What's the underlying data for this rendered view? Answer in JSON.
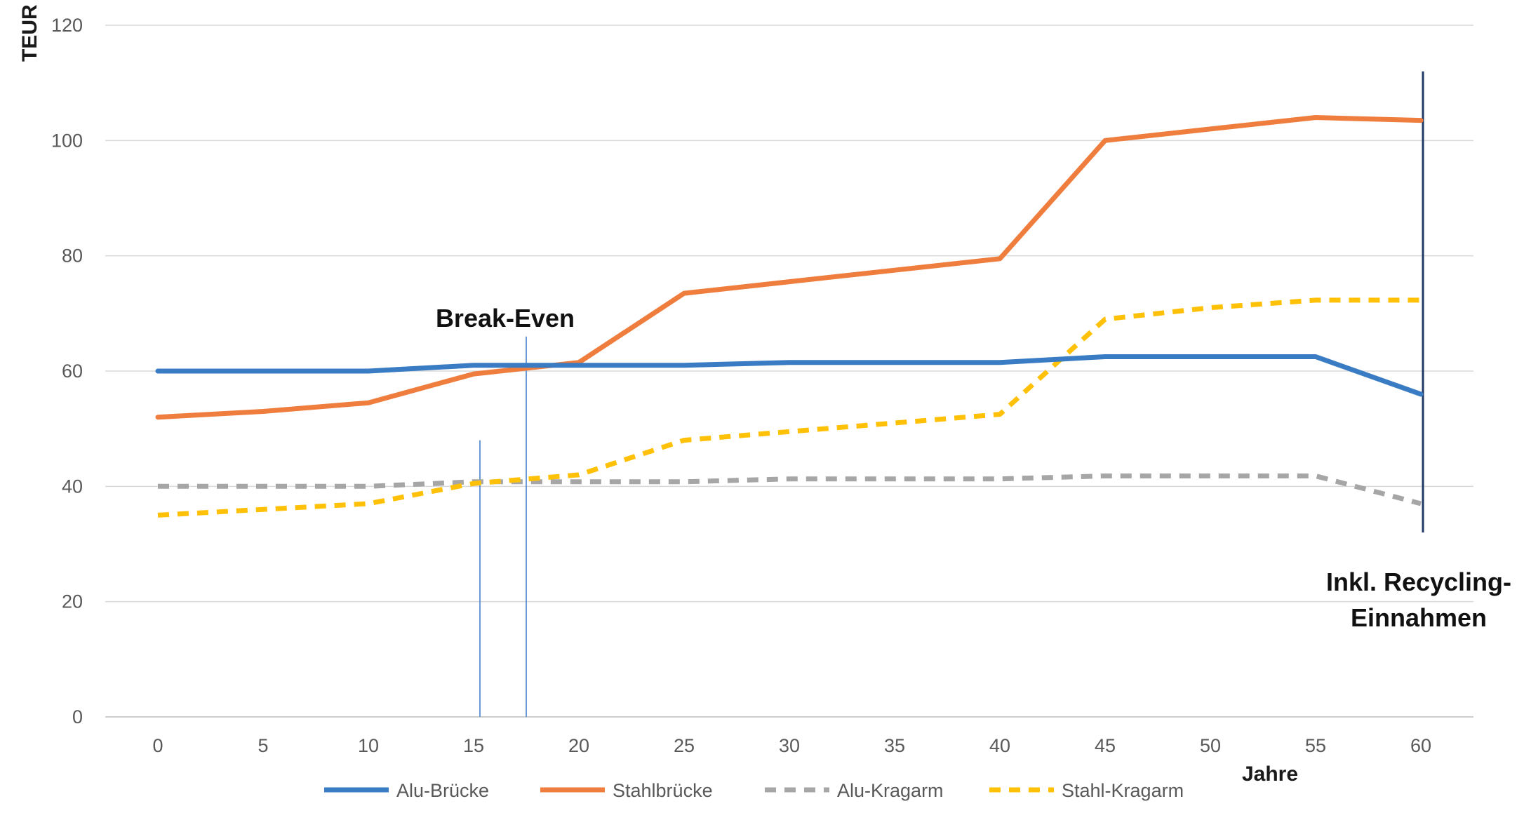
{
  "chart_data": {
    "type": "line",
    "title": "",
    "xlabel": "Jahre",
    "ylabel": "TEUR",
    "x": [
      0,
      5,
      10,
      15,
      20,
      25,
      30,
      35,
      40,
      45,
      50,
      55,
      60
    ],
    "xlim": [
      -2.5,
      62.5
    ],
    "ylim": [
      0,
      120
    ],
    "xticks": [
      "0",
      "5",
      "10",
      "15",
      "20",
      "25",
      "30",
      "35",
      "40",
      "45",
      "50",
      "55",
      "60"
    ],
    "yticks": [
      "0",
      "20",
      "40",
      "60",
      "80",
      "100",
      "120"
    ],
    "grid": true,
    "legend_position": "bottom",
    "series": [
      {
        "name": "Alu-Brücke",
        "style": "solid",
        "color": "#3a7cc3",
        "values": [
          60,
          60,
          60,
          61,
          61,
          61,
          61.5,
          61.5,
          61.5,
          62.5,
          62.5,
          62.5,
          56
        ]
      },
      {
        "name": "Stahlbrücke",
        "style": "solid",
        "color": "#ef7d3e",
        "values": [
          52,
          53,
          54.5,
          59.5,
          61.5,
          73.5,
          75.5,
          77.5,
          79.5,
          100,
          102,
          104,
          103.5
        ]
      },
      {
        "name": "Alu-Kragarm",
        "style": "dashed",
        "color": "#a6a6a6",
        "values": [
          40,
          40,
          40,
          40.8,
          40.8,
          40.8,
          41.3,
          41.3,
          41.3,
          41.8,
          41.8,
          41.8,
          37
        ]
      },
      {
        "name": "Stahl-Kragarm",
        "style": "dashed",
        "color": "#ffc107",
        "values": [
          35,
          36,
          37,
          40.5,
          42,
          48,
          49.5,
          51,
          52.5,
          69,
          71,
          72.3,
          72.3
        ]
      }
    ],
    "annotations": [
      {
        "text": "Break-Even",
        "x": 17.5
      },
      {
        "text_lines": [
          "Inkl. Recycling-",
          "Einnahmen"
        ],
        "x": 60
      }
    ],
    "vlines": [
      {
        "x": 15.3,
        "y_from": 0,
        "y_to": 48,
        "color": "#5b8fd0"
      },
      {
        "x": 17.5,
        "y_from": 0,
        "y_to": 66,
        "color": "#5b8fd0"
      },
      {
        "x": 60.1,
        "y_from": 32,
        "y_to": 112,
        "color": "#1f3864"
      }
    ]
  }
}
